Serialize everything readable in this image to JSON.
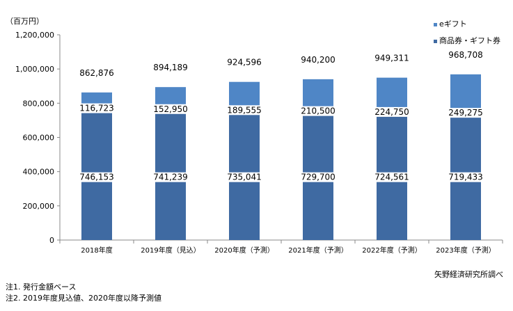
{
  "chart_data": {
    "type": "bar",
    "stacked": true,
    "unit_label": "（百万円）",
    "categories": [
      "2018年度",
      "2019年度（見込）",
      "2020年度（予測）",
      "2021年度（予測）",
      "2022年度（予測）",
      "2023年度（予測）"
    ],
    "series": [
      {
        "name": "商品券・ギフト券",
        "color": "#3f6aa2",
        "values": [
          746153,
          741239,
          735041,
          729700,
          724561,
          719433
        ]
      },
      {
        "name": "eギフト",
        "color": "#4f86c6",
        "values": [
          116723,
          152950,
          189555,
          210500,
          224750,
          249275
        ]
      }
    ],
    "totals": [
      862876,
      894189,
      924596,
      940200,
      949311,
      968708
    ],
    "ylim": [
      0,
      1200000
    ],
    "yticks": [
      0,
      200000,
      400000,
      600000,
      800000,
      1000000,
      1200000
    ],
    "ytick_labels": [
      "0",
      "200,000",
      "400,000",
      "600,000",
      "800,000",
      "1,000,000",
      "1,200,000"
    ],
    "legend_position": "top-right",
    "grid": false
  },
  "source": "矢野経済研究所調べ",
  "notes": [
    "注1. 発行金額ベース",
    "注2. 2019年度見込値、2020年度以降予測値"
  ]
}
